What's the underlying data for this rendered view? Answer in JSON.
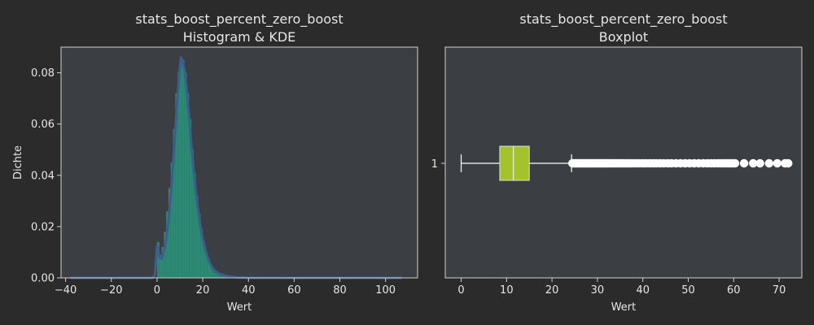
{
  "colors": {
    "figure_bg": "#2b2b2b",
    "axes_bg": "#3b3e42",
    "spine": "#d0d0d0",
    "text": "#e6e6e6",
    "hist_fill": "#2a8f78",
    "kde_line": "#3b5e8c",
    "box_fill": "#a4c32a",
    "whisker": "#ffffff",
    "flier": "#ffffff"
  },
  "chart_data": [
    {
      "type": "histogram",
      "title_line1": "stats_boost_percent_zero_boost",
      "title_line2": "Histogram & KDE",
      "xlabel": "Wert",
      "ylabel": "Dichte",
      "xlim": [
        -42,
        114
      ],
      "ylim": [
        0,
        0.09
      ],
      "xticks": [
        -40,
        -20,
        0,
        20,
        40,
        60,
        80,
        100
      ],
      "yticks": [
        0.0,
        0.02,
        0.04,
        0.06,
        0.08
      ],
      "ytick_labels": [
        "0.00",
        "0.02",
        "0.04",
        "0.06",
        "0.08"
      ],
      "hist_bin_width": 1,
      "hist_bins": [
        [
          0,
          0.014
        ],
        [
          1,
          0.009
        ],
        [
          2,
          0.012
        ],
        [
          3,
          0.018
        ],
        [
          4,
          0.026
        ],
        [
          5,
          0.035
        ],
        [
          6,
          0.045
        ],
        [
          7,
          0.058
        ],
        [
          8,
          0.072
        ],
        [
          9,
          0.08
        ],
        [
          10,
          0.085
        ],
        [
          11,
          0.085
        ],
        [
          12,
          0.08
        ],
        [
          13,
          0.072
        ],
        [
          14,
          0.062
        ],
        [
          15,
          0.05
        ],
        [
          16,
          0.041
        ],
        [
          17,
          0.032
        ],
        [
          18,
          0.025
        ],
        [
          19,
          0.019
        ],
        [
          20,
          0.014
        ],
        [
          21,
          0.01
        ],
        [
          22,
          0.007
        ],
        [
          23,
          0.005
        ],
        [
          24,
          0.003
        ],
        [
          25,
          0.002
        ],
        [
          26,
          0.0015
        ],
        [
          27,
          0.001
        ],
        [
          28,
          0.0007
        ],
        [
          29,
          0.0005
        ],
        [
          30,
          0.0003
        ],
        [
          31,
          0.0002
        ],
        [
          32,
          0.0001
        ]
      ],
      "kde": {
        "x": [
          -38,
          -2,
          -1,
          -0.5,
          0,
          0.5,
          1,
          2,
          3,
          4,
          5,
          6,
          7,
          8,
          9,
          10,
          10.5,
          11,
          12,
          13,
          14,
          15,
          16,
          17,
          18,
          19,
          20,
          21,
          22,
          23,
          24,
          25,
          27,
          30,
          35,
          40,
          60,
          80,
          100,
          107
        ],
        "y": [
          0,
          0,
          0.001,
          0.006,
          0.0125,
          0.011,
          0.008,
          0.0075,
          0.0105,
          0.015,
          0.022,
          0.032,
          0.044,
          0.058,
          0.071,
          0.082,
          0.086,
          0.085,
          0.081,
          0.073,
          0.063,
          0.052,
          0.042,
          0.033,
          0.026,
          0.02,
          0.015,
          0.0115,
          0.0085,
          0.006,
          0.0042,
          0.003,
          0.0017,
          0.0008,
          0.0002,
          5e-05,
          0,
          0,
          0,
          0
        ]
      }
    },
    {
      "type": "boxplot",
      "title_line1": "stats_boost_percent_zero_boost",
      "title_line2": "Boxplot",
      "xlabel": "Wert",
      "ylabel": "",
      "xlim": [
        -3.5,
        75
      ],
      "xticks": [
        0,
        10,
        20,
        30,
        40,
        50,
        60,
        70
      ],
      "ytick_labels": [
        "1"
      ],
      "box": {
        "whisker_low": 0,
        "q1": 8.5,
        "median": 11.5,
        "q3": 15,
        "whisker_high": 24.3
      },
      "outliers": [
        24.5,
        24.8,
        25.1,
        25.4,
        25.7,
        26,
        26.3,
        26.6,
        26.9,
        27.2,
        27.5,
        27.8,
        28.1,
        28.4,
        28.7,
        29,
        29.3,
        29.6,
        29.9,
        30.2,
        30.5,
        30.8,
        31.1,
        31.4,
        31.7,
        32,
        32.3,
        32.6,
        33,
        33.4,
        33.8,
        34.2,
        34.6,
        35,
        35.4,
        35.8,
        36.3,
        36.8,
        37.3,
        38,
        38.6,
        39.3,
        40,
        40.7,
        41.5,
        42.3,
        43,
        43.8,
        44.6,
        45.5,
        46.3,
        47.3,
        48.3,
        49.3,
        50.3,
        51.3,
        52.3,
        53.3,
        54.2,
        55,
        55.8,
        56.6,
        57.3,
        58,
        58.6,
        59.2,
        59.8,
        60.3,
        62.3,
        64.3,
        65.8,
        67.8,
        69.6,
        71.3,
        72
      ]
    }
  ]
}
